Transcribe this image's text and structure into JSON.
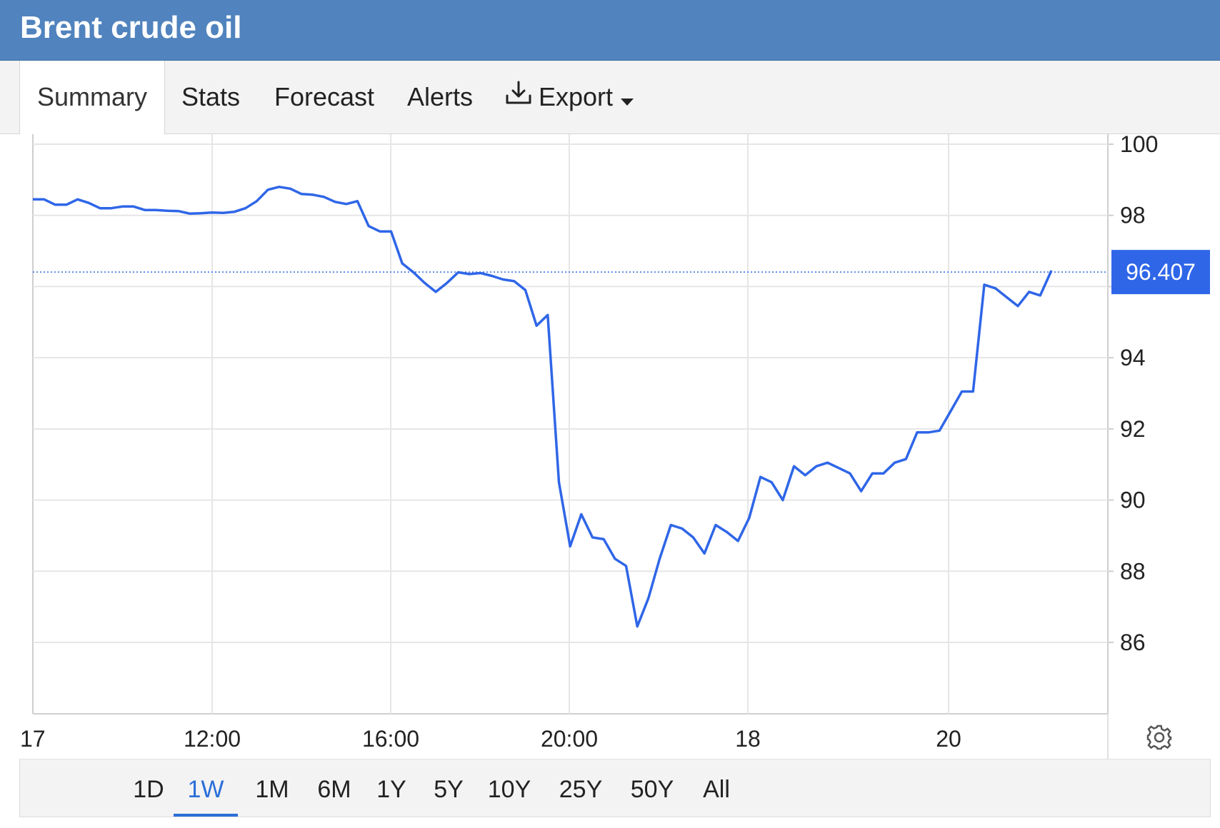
{
  "title": "Brent crude oil",
  "tabs": [
    {
      "label": "Summary",
      "active": true
    },
    {
      "label": "Stats"
    },
    {
      "label": "Forecast"
    },
    {
      "label": "Alerts"
    },
    {
      "label": "Export",
      "icon": "download-icon",
      "dropdown": true
    }
  ],
  "ranges": [
    {
      "label": "1D"
    },
    {
      "label": "1W",
      "active": true
    },
    {
      "label": "1M"
    },
    {
      "label": "6M"
    },
    {
      "label": "1Y"
    },
    {
      "label": "5Y"
    },
    {
      "label": "10Y"
    },
    {
      "label": "25Y"
    },
    {
      "label": "50Y"
    },
    {
      "label": "All"
    }
  ],
  "settings_icon": "gear-icon",
  "colors": {
    "header": "#5183be",
    "line": "#2f66e8",
    "price_tag": "#2f66e8",
    "active_range": "#2b6ed8"
  },
  "chart_data": {
    "type": "line",
    "title": "Brent crude oil",
    "ylim": [
      84,
      100
    ],
    "yticks": [
      86,
      88,
      90,
      92,
      94,
      96,
      98,
      100
    ],
    "ytick_labels": [
      "86",
      "88",
      "90",
      "92",
      "94",
      "",
      "98",
      "100"
    ],
    "xtick_labels": [
      "17",
      "12:00",
      "16:00",
      "20:00",
      "18",
      "20"
    ],
    "last_price": 96.407,
    "last_price_label": "96.407",
    "grid": true,
    "series": [
      {
        "values": [
          98.45,
          98.45,
          98.3,
          98.3,
          98.45,
          98.35,
          98.2,
          98.2,
          98.25,
          98.25,
          98.15,
          98.15,
          98.13,
          98.12,
          98.05,
          98.06,
          98.08,
          98.07,
          98.1,
          98.2,
          98.4,
          98.72,
          98.8,
          98.75,
          98.6,
          98.58,
          98.52,
          98.38,
          98.32,
          98.4,
          97.7,
          97.55,
          97.55,
          96.65,
          96.4,
          96.1,
          95.85,
          96.1,
          96.4,
          96.35,
          96.38,
          96.3,
          96.2,
          96.15,
          95.9,
          94.9,
          95.2,
          90.5,
          88.7,
          89.6,
          88.95,
          88.9,
          88.35,
          88.15,
          86.45,
          87.25,
          88.35,
          89.3,
          89.2,
          88.95,
          88.5,
          89.3,
          89.1,
          88.85,
          89.5,
          90.65,
          90.5,
          90,
          90.95,
          90.7,
          90.95,
          91.05,
          90.9,
          90.75,
          90.25,
          90.75,
          90.75,
          91.05,
          91.15,
          91.9,
          91.9,
          91.95,
          92.5,
          93.05,
          93.05,
          96.05,
          95.95,
          95.7,
          95.45,
          95.85,
          95.75,
          96.45
        ]
      }
    ]
  }
}
